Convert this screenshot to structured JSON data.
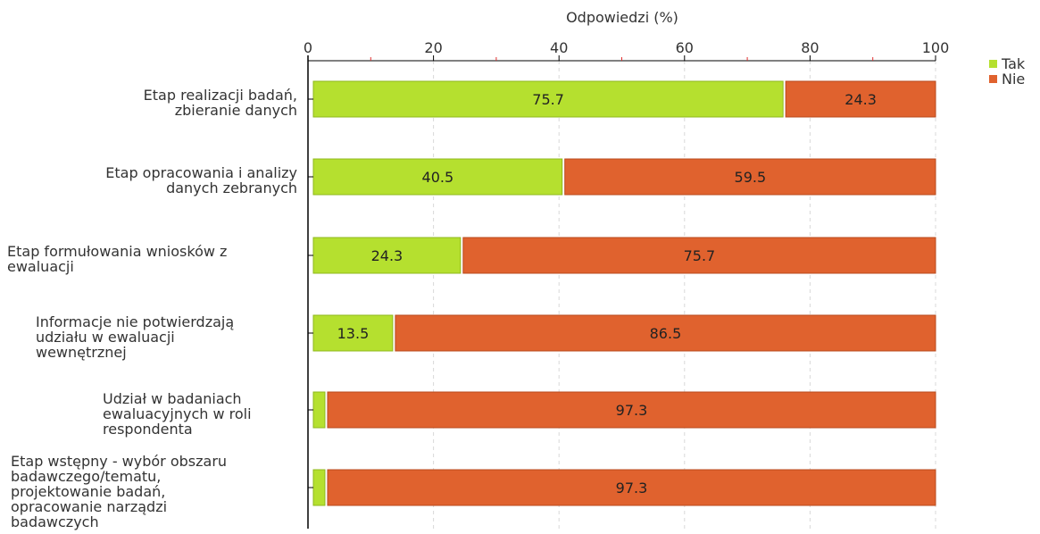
{
  "chart_data": {
    "type": "bar",
    "orientation": "horizontal",
    "stacked": true,
    "title": "",
    "xlabel": "Odpowiedzi (%)",
    "ylabel": "",
    "xlim": [
      0,
      100
    ],
    "xticks": [
      "0",
      "20",
      "40",
      "60",
      "80",
      "100"
    ],
    "grid": true,
    "legend_position": "top-right",
    "categories": [
      "Etap realizacji badań, zbieranie danych",
      "Etap opracowania i analizy danych zebranych",
      "Etap formułowania wniosków z ewaluacji",
      "Informacje nie potwierdzają udziału w ewaluacji wewnętrznej",
      "Udział w badaniach ewaluacyjnych w roli respondenta",
      "Etap wstępny - wybór obszaru badawczego/tematu, projektowanie badań, opracowanie narządzi badawczych"
    ],
    "category_lines": [
      [
        "Etap realizacji badań,",
        "zbieranie danych"
      ],
      [
        "Etap opracowania i analizy",
        "danych zebranych"
      ],
      [
        "Etap formułowania wniosków z",
        "ewaluacji"
      ],
      [
        "Informacje nie potwierdzają",
        "udziału w ewaluacji",
        "wewnętrznej"
      ],
      [
        "Udział w badaniach",
        "ewaluacyjnych w roli",
        "respondenta"
      ],
      [
        "Etap wstępny - wybór obszaru",
        "badawczego/tematu,",
        "projektowanie badań,",
        "opracowanie narządzi",
        "badawczych"
      ]
    ],
    "series": [
      {
        "name": "Tak",
        "color": "#b5e02f",
        "values": [
          75.7,
          40.5,
          24.3,
          13.5,
          2.7,
          2.7
        ],
        "labels": [
          "75.7",
          "40.5",
          "24.3",
          "13.5",
          "",
          ""
        ]
      },
      {
        "name": "Nie",
        "color": "#e0622e",
        "values": [
          24.3,
          59.5,
          75.7,
          86.5,
          97.3,
          97.3
        ],
        "labels": [
          "24.3",
          "59.5",
          "75.7",
          "86.5",
          "97.3",
          "97.3"
        ]
      }
    ]
  }
}
